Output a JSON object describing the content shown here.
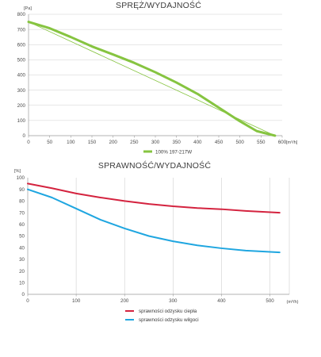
{
  "chart_data": [
    {
      "type": "line",
      "title": "SPRĘŻ/WYDAJNOŚĆ",
      "xlabel": "[m³/h]",
      "ylabel": "[Pa]",
      "xlim": [
        0,
        600
      ],
      "ylim": [
        0,
        800
      ],
      "x_ticks": [
        0,
        50,
        100,
        150,
        200,
        250,
        300,
        350,
        400,
        450,
        500,
        550,
        600
      ],
      "y_ticks": [
        0,
        100,
        200,
        300,
        400,
        500,
        600,
        700,
        800
      ],
      "grid": "horizontal",
      "legend": "bottom",
      "series": [
        {
          "name": "100% 197-217W",
          "color": "#86c440",
          "points": [
            [
              0,
              750
            ],
            [
              50,
              708
            ],
            [
              100,
              650
            ],
            [
              150,
              588
            ],
            [
              200,
              535
            ],
            [
              250,
              480
            ],
            [
              300,
              418
            ],
            [
              350,
              350
            ],
            [
              400,
              275
            ],
            [
              450,
              185
            ],
            [
              500,
              95
            ],
            [
              540,
              30
            ],
            [
              583,
              0
            ]
          ]
        },
        {
          "color": "#86c440",
          "style": "thin",
          "points": [
            [
              0,
              750
            ],
            [
              583,
              0
            ]
          ]
        }
      ]
    },
    {
      "type": "line",
      "title": "SPRAWNOŚĆ/WYDAJNOŚĆ",
      "xlabel": "(m³/h)",
      "ylabel": "[%]",
      "xlim": [
        0,
        540
      ],
      "ylim": [
        0,
        100
      ],
      "x_ticks": [
        0,
        100,
        200,
        300,
        400,
        500
      ],
      "y_ticks": [
        0,
        10,
        20,
        30,
        40,
        50,
        60,
        70,
        80,
        90,
        100
      ],
      "grid": "vertical",
      "legend": "bottom",
      "series": [
        {
          "name": "sprawności odzysku ciepła",
          "color": "#d4233f",
          "points": [
            [
              0,
              95
            ],
            [
              50,
              91
            ],
            [
              100,
              86.5
            ],
            [
              150,
              83
            ],
            [
              200,
              80
            ],
            [
              250,
              77.5
            ],
            [
              300,
              75.5
            ],
            [
              350,
              74
            ],
            [
              400,
              73
            ],
            [
              450,
              71.5
            ],
            [
              520,
              70
            ]
          ]
        },
        {
          "name": "sprawności odzysku wilgoci",
          "color": "#1fa6e0",
          "points": [
            [
              0,
              90
            ],
            [
              50,
              83
            ],
            [
              100,
              73.5
            ],
            [
              150,
              64
            ],
            [
              200,
              56.5
            ],
            [
              250,
              50
            ],
            [
              300,
              45.5
            ],
            [
              350,
              42
            ],
            [
              400,
              39.5
            ],
            [
              450,
              37.5
            ],
            [
              520,
              36
            ]
          ]
        }
      ]
    }
  ]
}
